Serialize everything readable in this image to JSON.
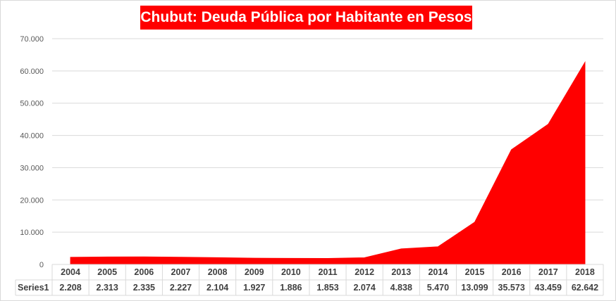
{
  "chart_data": {
    "type": "area",
    "title": "Chubut: Deuda Pública por Habitante en Pesos",
    "categories": [
      "2004",
      "2005",
      "2006",
      "2007",
      "2008",
      "2009",
      "2010",
      "2011",
      "2012",
      "2013",
      "2014",
      "2015",
      "2016",
      "2017",
      "2018"
    ],
    "series": [
      {
        "name": "Series1",
        "values": [
          2208,
          2313,
          2335,
          2227,
          2104,
          1927,
          1886,
          1853,
          2074,
          4838,
          5470,
          13099,
          35573,
          43459,
          62642
        ],
        "value_labels": [
          "2.208",
          "2.313",
          "2.335",
          "2.227",
          "2.104",
          "1.927",
          "1.886",
          "1.853",
          "2.074",
          "4.838",
          "5.470",
          "13.099",
          "35.573",
          "43.459",
          "62.642"
        ],
        "color": "#ff0000"
      }
    ],
    "ylim": [
      0,
      70000
    ],
    "yticks": [
      0,
      10000,
      20000,
      30000,
      40000,
      50000,
      60000,
      70000
    ],
    "ytick_labels": [
      "0",
      "10.000",
      "20.000",
      "30.000",
      "40.000",
      "50.000",
      "60.000",
      "70.000"
    ],
    "grid": true,
    "legend": "data-table",
    "xlabel": "",
    "ylabel": ""
  },
  "colors": {
    "title_bg": "#ff0000",
    "title_text": "#ffffff",
    "gridline": "#d9d9d9",
    "table_border": "#d9d9d9"
  }
}
